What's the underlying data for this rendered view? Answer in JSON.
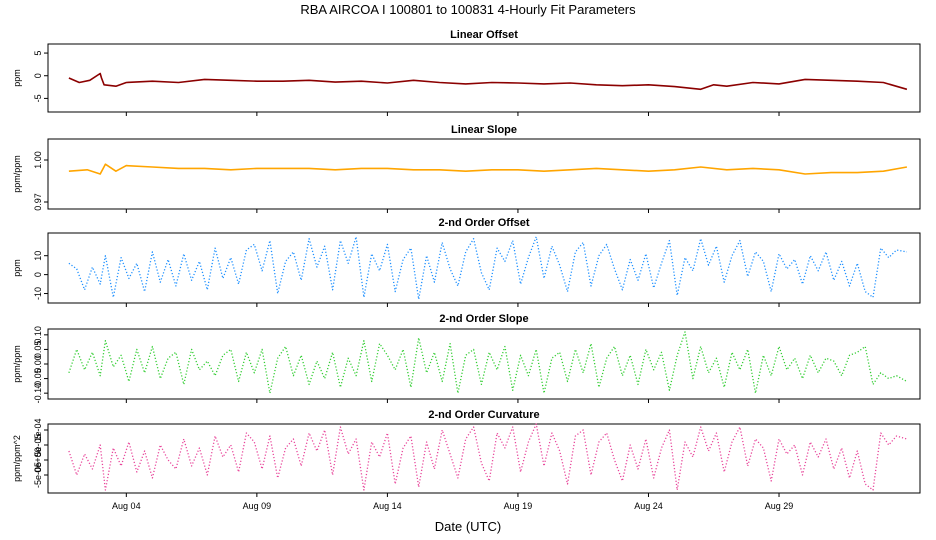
{
  "title": "RBA   AIRCOA I   100801 to 100831   4-Hourly Fit Parameters",
  "xlabel": "Date (UTC)",
  "x_ticks": [
    "Aug 04",
    "Aug 09",
    "Aug 14",
    "Aug 19",
    "Aug 24",
    "Aug 29"
  ],
  "chart_data": [
    {
      "type": "line",
      "title": "Linear Offset",
      "ylabel": "ppm",
      "color": "#8b0000",
      "style": "solid",
      "ylim": [
        -8,
        7
      ],
      "yticks": [
        "5",
        "0",
        "-5"
      ],
      "ytick_values": [
        5,
        0,
        -5
      ],
      "x_day_range": [
        1.8,
        33.9
      ],
      "series": [
        {
          "x_days": [
            1.8,
            2.2,
            2.6,
            3.0,
            3.05,
            3.15,
            3.6,
            4.0,
            5.0,
            6.0,
            7.0,
            8.0,
            9.0,
            10.0,
            11.0,
            12.0,
            13.0,
            14.0,
            15.0,
            16.0,
            17.0,
            18.0,
            19.0,
            20.0,
            21.0,
            22.0,
            23.0,
            24.0,
            25.0,
            26.0,
            26.5,
            27.0,
            28.0,
            29.0,
            30.0,
            31.0,
            32.0,
            33.0,
            33.9
          ],
          "y": [
            -0.5,
            -1.5,
            -1.0,
            0.5,
            -0.5,
            -2.0,
            -2.3,
            -1.5,
            -1.2,
            -1.5,
            -0.8,
            -1.0,
            -1.2,
            -1.2,
            -1.0,
            -1.4,
            -1.2,
            -1.6,
            -1.0,
            -1.5,
            -1.8,
            -1.5,
            -1.6,
            -1.8,
            -1.6,
            -2.0,
            -2.2,
            -2.0,
            -2.4,
            -3.0,
            -2.0,
            -2.3,
            -1.5,
            -1.8,
            -0.8,
            -1.0,
            -1.2,
            -1.5,
            -3.0
          ]
        }
      ]
    },
    {
      "type": "line",
      "title": "Linear Slope",
      "ylabel": "ppm/ppm",
      "color": "#ffa500",
      "style": "solid",
      "ylim": [
        0.965,
        1.015
      ],
      "yticks": [
        "1.00",
        "0.97"
      ],
      "ytick_values": [
        1.0,
        0.97
      ],
      "x_day_range": [
        1.8,
        33.9
      ],
      "series": [
        {
          "x_days": [
            1.8,
            2.5,
            3.0,
            3.2,
            3.6,
            4.0,
            5.0,
            6.0,
            7.0,
            8.0,
            9.0,
            10.0,
            11.0,
            12.0,
            13.0,
            14.0,
            15.0,
            16.0,
            17.0,
            18.0,
            19.0,
            20.0,
            21.0,
            22.0,
            23.0,
            24.0,
            25.0,
            26.0,
            27.0,
            28.0,
            29.0,
            30.0,
            31.0,
            32.0,
            33.0,
            33.9
          ],
          "y": [
            0.992,
            0.993,
            0.99,
            0.997,
            0.992,
            0.996,
            0.995,
            0.994,
            0.994,
            0.993,
            0.994,
            0.994,
            0.994,
            0.993,
            0.994,
            0.994,
            0.993,
            0.993,
            0.992,
            0.993,
            0.993,
            0.992,
            0.993,
            0.994,
            0.993,
            0.992,
            0.993,
            0.995,
            0.993,
            0.994,
            0.993,
            0.99,
            0.991,
            0.991,
            0.992,
            0.995
          ]
        }
      ]
    },
    {
      "type": "line",
      "title": "2-nd Order Offset",
      "ylabel": "ppm",
      "color": "#1e90ff",
      "style": "dotted",
      "ylim": [
        -15,
        22
      ],
      "yticks": [
        "10",
        "0",
        "-10"
      ],
      "ytick_values": [
        10,
        0,
        -10
      ],
      "x_day_range": [
        1.8,
        33.9
      ],
      "series": [
        {
          "x_days": [
            1.8,
            2.1,
            2.4,
            2.7,
            3.0,
            3.2,
            3.5,
            3.8,
            4.1,
            4.4,
            4.7,
            5.0,
            5.3,
            5.6,
            5.9,
            6.2,
            6.5,
            6.8,
            7.1,
            7.4,
            7.7,
            8.0,
            8.3,
            8.6,
            8.9,
            9.2,
            9.5,
            9.8,
            10.1,
            10.4,
            10.7,
            11.0,
            11.3,
            11.6,
            11.9,
            12.2,
            12.5,
            12.8,
            13.1,
            13.4,
            13.7,
            14.0,
            14.3,
            14.6,
            14.9,
            15.2,
            15.5,
            15.8,
            16.1,
            16.4,
            16.7,
            17.0,
            17.3,
            17.6,
            17.9,
            18.2,
            18.5,
            18.8,
            19.1,
            19.4,
            19.7,
            20.0,
            20.3,
            20.6,
            20.9,
            21.2,
            21.5,
            21.8,
            22.1,
            22.4,
            22.7,
            23.0,
            23.3,
            23.6,
            23.9,
            24.2,
            24.5,
            24.8,
            25.1,
            25.4,
            25.7,
            26.0,
            26.3,
            26.6,
            26.9,
            27.2,
            27.5,
            27.8,
            28.1,
            28.4,
            28.7,
            29.0,
            29.3,
            29.6,
            29.9,
            30.2,
            30.5,
            30.8,
            31.1,
            31.4,
            31.7,
            32.0,
            32.3,
            32.6,
            32.9,
            33.2,
            33.5,
            33.9
          ],
          "y": [
            6,
            3,
            -8,
            4,
            -5,
            10,
            -12,
            9,
            -2,
            6,
            -9,
            12,
            -4,
            8,
            -6,
            11,
            -3,
            7,
            -8,
            14,
            -2,
            9,
            -5,
            13,
            16,
            2,
            18,
            -10,
            7,
            12,
            -3,
            19,
            4,
            15,
            -8,
            18,
            6,
            20,
            -12,
            11,
            2,
            16,
            -9,
            8,
            14,
            -13,
            10,
            -4,
            17,
            3,
            -6,
            12,
            19,
            1,
            -8,
            14,
            7,
            18,
            -5,
            9,
            20,
            -2,
            15,
            5,
            -9,
            12,
            17,
            -6,
            10,
            16,
            3,
            -8,
            8,
            -3,
            11,
            -7,
            6,
            18,
            -11,
            9,
            2,
            19,
            5,
            15,
            -4,
            10,
            18,
            -1,
            12,
            7,
            -9,
            11,
            3,
            8,
            -5,
            10,
            2,
            12,
            -3,
            7,
            -6,
            6,
            -9,
            -12,
            14,
            9,
            13,
            12
          ]
        }
      ]
    },
    {
      "type": "line",
      "title": "2-nd Order Slope",
      "ylabel": "ppm/ppm",
      "color": "#32cd32",
      "style": "dotted",
      "ylim": [
        -0.12,
        0.12
      ],
      "yticks": [
        "0.10",
        "0.05",
        "0.00",
        "-0.05",
        "-0.10"
      ],
      "ytick_values": [
        0.1,
        0.05,
        0.0,
        -0.05,
        -0.1
      ],
      "x_day_range": [
        1.8,
        33.9
      ],
      "series": [
        {
          "x_days": [
            1.8,
            2.1,
            2.4,
            2.7,
            3.0,
            3.2,
            3.5,
            3.8,
            4.1,
            4.4,
            4.7,
            5.0,
            5.3,
            5.6,
            5.9,
            6.2,
            6.5,
            6.8,
            7.1,
            7.4,
            7.7,
            8.0,
            8.3,
            8.6,
            8.9,
            9.2,
            9.5,
            9.8,
            10.1,
            10.4,
            10.7,
            11.0,
            11.3,
            11.6,
            11.9,
            12.2,
            12.5,
            12.8,
            13.1,
            13.4,
            13.7,
            14.0,
            14.3,
            14.6,
            14.9,
            15.2,
            15.5,
            15.8,
            16.1,
            16.4,
            16.7,
            17.0,
            17.3,
            17.6,
            17.9,
            18.2,
            18.5,
            18.8,
            19.1,
            19.4,
            19.7,
            20.0,
            20.3,
            20.6,
            20.9,
            21.2,
            21.5,
            21.8,
            22.1,
            22.4,
            22.7,
            23.0,
            23.3,
            23.6,
            23.9,
            24.2,
            24.5,
            24.8,
            25.1,
            25.4,
            25.7,
            26.0,
            26.3,
            26.6,
            26.9,
            27.2,
            27.5,
            27.8,
            28.1,
            28.4,
            28.7,
            29.0,
            29.3,
            29.6,
            29.9,
            30.2,
            30.5,
            30.8,
            31.1,
            31.4,
            31.7,
            32.0,
            32.3,
            32.6,
            32.9,
            33.2,
            33.5,
            33.9
          ],
          "y": [
            -0.03,
            0.05,
            -0.02,
            0.04,
            -0.04,
            0.08,
            -0.01,
            0.03,
            -0.06,
            0.05,
            -0.03,
            0.06,
            -0.05,
            0.02,
            0.04,
            -0.07,
            0.05,
            -0.02,
            0.01,
            -0.04,
            0.03,
            0.05,
            -0.06,
            0.04,
            -0.03,
            0.05,
            -0.1,
            0.02,
            0.06,
            -0.04,
            0.03,
            -0.07,
            0.01,
            -0.05,
            0.04,
            -0.08,
            0.02,
            -0.04,
            0.08,
            -0.06,
            0.07,
            0.03,
            -0.02,
            0.05,
            -0.08,
            0.09,
            -0.03,
            0.04,
            -0.06,
            0.07,
            -0.1,
            0.03,
            0.05,
            -0.07,
            0.04,
            -0.02,
            0.06,
            -0.09,
            0.03,
            -0.04,
            0.05,
            -0.1,
            0.02,
            0.04,
            -0.06,
            0.05,
            -0.03,
            0.07,
            -0.08,
            0.02,
            0.06,
            -0.04,
            0.03,
            -0.07,
            0.05,
            -0.02,
            0.04,
            -0.09,
            0.03,
            0.11,
            -0.05,
            0.06,
            -0.03,
            0.02,
            -0.08,
            0.04,
            -0.02,
            0.05,
            -0.1,
            0.03,
            -0.04,
            0.06,
            -0.02,
            0.02,
            -0.05,
            0.03,
            -0.03,
            0.02,
            0.01,
            -0.04,
            0.03,
            0.04,
            0.06,
            -0.07,
            -0.03,
            -0.05,
            -0.04,
            -0.06
          ]
        }
      ]
    },
    {
      "type": "line",
      "title": "2-nd Order Curvature",
      "ylabel": "ppm/ppm^2",
      "color": "#e8459a",
      "style": "dotted",
      "ylim": [
        -0.00011,
        0.00012
      ],
      "yticks": [
        "1e-04",
        "5e-05",
        "0e+00",
        "-5e-05"
      ],
      "ytick_values": [
        0.0001,
        5e-05,
        0,
        -5e-05
      ],
      "x_day_range": [
        1.8,
        33.9
      ],
      "series": [
        {
          "x_days": [
            1.8,
            2.1,
            2.4,
            2.7,
            3.0,
            3.2,
            3.5,
            3.8,
            4.1,
            4.4,
            4.7,
            5.0,
            5.3,
            5.6,
            5.9,
            6.2,
            6.5,
            6.8,
            7.1,
            7.4,
            7.7,
            8.0,
            8.3,
            8.6,
            8.9,
            9.2,
            9.5,
            9.8,
            10.1,
            10.4,
            10.7,
            11.0,
            11.3,
            11.6,
            11.9,
            12.2,
            12.5,
            12.8,
            13.1,
            13.4,
            13.7,
            14.0,
            14.3,
            14.6,
            14.9,
            15.2,
            15.5,
            15.8,
            16.1,
            16.4,
            16.7,
            17.0,
            17.3,
            17.6,
            17.9,
            18.2,
            18.5,
            18.8,
            19.1,
            19.4,
            19.7,
            20.0,
            20.3,
            20.6,
            20.9,
            21.2,
            21.5,
            21.8,
            22.1,
            22.4,
            22.7,
            23.0,
            23.3,
            23.6,
            23.9,
            24.2,
            24.5,
            24.8,
            25.1,
            25.4,
            25.7,
            26.0,
            26.3,
            26.6,
            26.9,
            27.2,
            27.5,
            27.8,
            28.1,
            28.4,
            28.7,
            29.0,
            29.3,
            29.6,
            29.9,
            30.2,
            30.5,
            30.8,
            31.1,
            31.4,
            31.7,
            32.0,
            32.3,
            32.6,
            32.9,
            33.2,
            33.5,
            33.9
          ],
          "y": [
            3e-05,
            -5e-05,
            2e-05,
            -3e-05,
            5e-05,
            -0.0001,
            4e-05,
            -2e-05,
            6e-05,
            -4e-05,
            3e-05,
            -6e-05,
            5e-05,
            0.0,
            -3e-05,
            7e-05,
            -2e-05,
            4e-05,
            -5e-05,
            8e-05,
            1e-05,
            5e-05,
            -4e-05,
            9e-05,
            6e-05,
            -3e-05,
            8e-05,
            -6e-05,
            4e-05,
            7e-05,
            -2e-05,
            9e-05,
            3e-05,
            0.0001,
            -5e-05,
            0.00011,
            2e-05,
            7e-05,
            -0.0001,
            6e-05,
            1e-05,
            9e-05,
            -8e-05,
            4e-05,
            8e-05,
            -9e-05,
            6e-05,
            -3e-05,
            0.0001,
            2e-05,
            -6e-05,
            7e-05,
            0.00011,
            -1e-05,
            -7e-05,
            9e-05,
            4e-05,
            0.00011,
            -4e-05,
            6e-05,
            0.00012,
            -2e-05,
            9e-05,
            3e-05,
            -8e-05,
            8e-05,
            0.0001,
            -5e-05,
            6e-05,
            9e-05,
            0.0,
            -7e-05,
            5e-05,
            -3e-05,
            7e-05,
            -6e-05,
            4e-05,
            0.0001,
            -0.0001,
            6e-05,
            1e-05,
            0.00011,
            3e-05,
            9e-05,
            -4e-05,
            6e-05,
            0.00011,
            -2e-05,
            7e-05,
            4e-05,
            -7e-05,
            7e-05,
            2e-05,
            5e-05,
            -5e-05,
            6e-05,
            1e-05,
            7e-05,
            -3e-05,
            4e-05,
            -6e-05,
            3e-05,
            -8e-05,
            -0.0001,
            9e-05,
            5e-05,
            8e-05,
            7e-05
          ]
        }
      ]
    }
  ]
}
